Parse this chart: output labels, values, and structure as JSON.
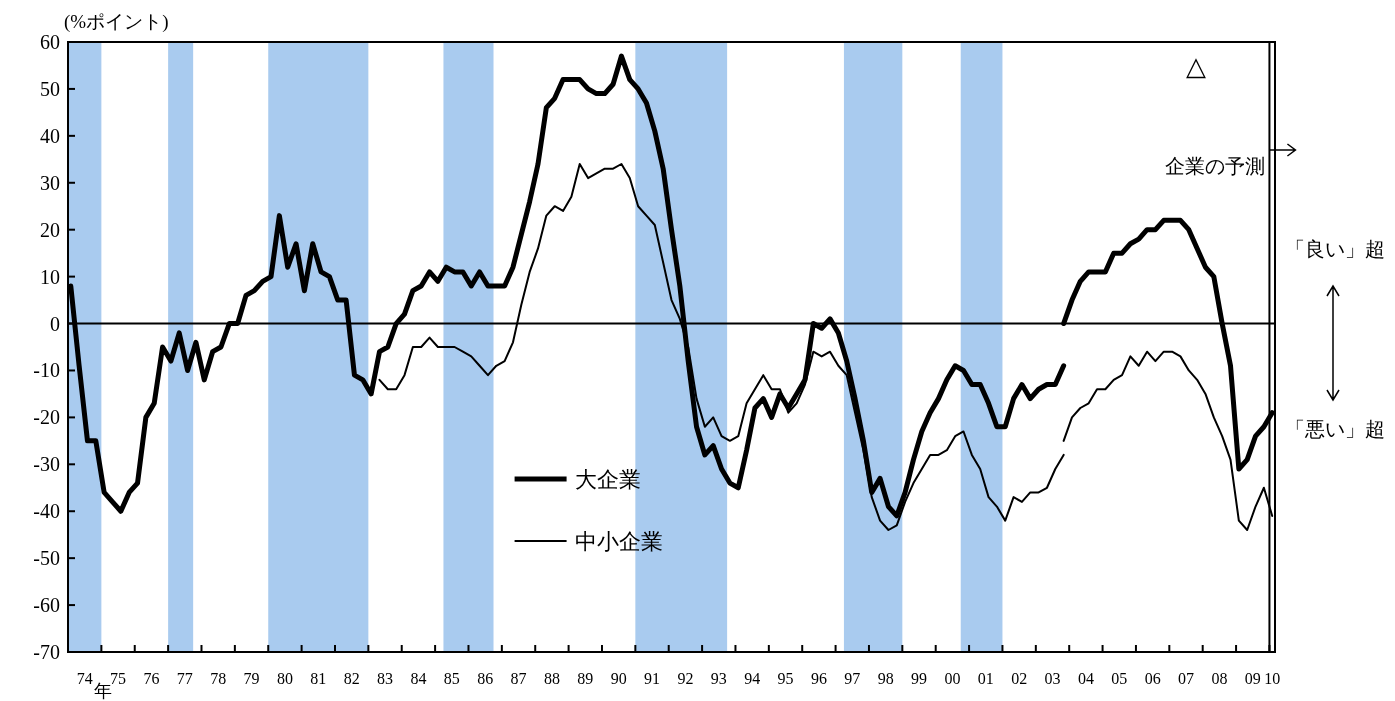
{
  "chart_data": {
    "type": "line",
    "ylabel": "(%ポイント)",
    "xlabel": "年",
    "xlim": [
      "1974-01",
      "2010-03"
    ],
    "ylim": [
      -70,
      60
    ],
    "yticks": [
      -70,
      -60,
      -50,
      -40,
      -30,
      -20,
      -10,
      0,
      10,
      20,
      30,
      40,
      50,
      60
    ],
    "xticks": [
      {
        "value": "1974-07",
        "label": "74"
      },
      {
        "value": "1975-01",
        "label": null
      },
      {
        "value": "1975-07",
        "label": "75"
      },
      {
        "value": "1976-01",
        "label": null
      },
      {
        "value": "1976-07",
        "label": "76"
      },
      {
        "value": "1977-01",
        "label": null
      },
      {
        "value": "1977-07",
        "label": "77"
      },
      {
        "value": "1978-01",
        "label": null
      },
      {
        "value": "1978-07",
        "label": "78"
      },
      {
        "value": "1979-01",
        "label": null
      },
      {
        "value": "1979-07",
        "label": "79"
      },
      {
        "value": "1980-01",
        "label": null
      },
      {
        "value": "1980-07",
        "label": "80"
      },
      {
        "value": "1981-01",
        "label": null
      },
      {
        "value": "1981-07",
        "label": "81"
      },
      {
        "value": "1982-01",
        "label": null
      },
      {
        "value": "1982-07",
        "label": "82"
      },
      {
        "value": "1983-01",
        "label": null
      },
      {
        "value": "1983-07",
        "label": "83"
      },
      {
        "value": "1984-01",
        "label": null
      },
      {
        "value": "1984-07",
        "label": "84"
      },
      {
        "value": "1985-01",
        "label": null
      },
      {
        "value": "1985-07",
        "label": "85"
      },
      {
        "value": "1986-01",
        "label": null
      },
      {
        "value": "1986-07",
        "label": "86"
      },
      {
        "value": "1987-01",
        "label": null
      },
      {
        "value": "1987-07",
        "label": "87"
      },
      {
        "value": "1988-01",
        "label": null
      },
      {
        "value": "1988-07",
        "label": "88"
      },
      {
        "value": "1989-01",
        "label": null
      },
      {
        "value": "1989-07",
        "label": "89"
      },
      {
        "value": "1990-01",
        "label": null
      },
      {
        "value": "1990-07",
        "label": "90"
      },
      {
        "value": "1991-01",
        "label": null
      },
      {
        "value": "1991-07",
        "label": "91"
      },
      {
        "value": "1992-01",
        "label": null
      },
      {
        "value": "1992-07",
        "label": "92"
      },
      {
        "value": "1993-01",
        "label": null
      },
      {
        "value": "1993-07",
        "label": "93"
      },
      {
        "value": "1994-01",
        "label": null
      },
      {
        "value": "1994-07",
        "label": "94"
      },
      {
        "value": "1995-01",
        "label": null
      },
      {
        "value": "1995-07",
        "label": "95"
      },
      {
        "value": "1996-01",
        "label": null
      },
      {
        "value": "1996-07",
        "label": "96"
      },
      {
        "value": "1997-01",
        "label": null
      },
      {
        "value": "1997-07",
        "label": "97"
      },
      {
        "value": "1998-01",
        "label": null
      },
      {
        "value": "1998-07",
        "label": "98"
      },
      {
        "value": "1999-01",
        "label": null
      },
      {
        "value": "1999-07",
        "label": "99"
      },
      {
        "value": "2000-01",
        "label": null
      },
      {
        "value": "2000-07",
        "label": "00"
      },
      {
        "value": "2001-01",
        "label": null
      },
      {
        "value": "2001-07",
        "label": "01"
      },
      {
        "value": "2002-01",
        "label": null
      },
      {
        "value": "2002-07",
        "label": "02"
      },
      {
        "value": "2003-01",
        "label": null
      },
      {
        "value": "2003-07",
        "label": "03"
      },
      {
        "value": "2004-01",
        "label": null
      },
      {
        "value": "2004-07",
        "label": "04"
      },
      {
        "value": "2005-01",
        "label": null
      },
      {
        "value": "2005-07",
        "label": "05"
      },
      {
        "value": "2006-01",
        "label": null
      },
      {
        "value": "2006-07",
        "label": "06"
      },
      {
        "value": "2007-01",
        "label": null
      },
      {
        "value": "2007-07",
        "label": "07"
      },
      {
        "value": "2008-01",
        "label": null
      },
      {
        "value": "2008-07",
        "label": "08"
      },
      {
        "value": "2009-01",
        "label": null
      },
      {
        "value": "2009-07",
        "label": "09"
      },
      {
        "value": "2010-01",
        "label": null
      },
      {
        "value": "2010-02",
        "label": "10"
      }
    ],
    "bands": [
      {
        "axis": "x",
        "from": "1974-01",
        "to": "1975-01",
        "color": "#a9cbef"
      },
      {
        "axis": "x",
        "from": "1977-01",
        "to": "1977-10",
        "color": "#a9cbef"
      },
      {
        "axis": "x",
        "from": "1980-01",
        "to": "1983-01",
        "color": "#a9cbef"
      },
      {
        "axis": "x",
        "from": "1985-04",
        "to": "1986-10",
        "color": "#a9cbef"
      },
      {
        "axis": "x",
        "from": "1991-01",
        "to": "1993-10",
        "color": "#a9cbef"
      },
      {
        "axis": "x",
        "from": "1997-04",
        "to": "1999-01",
        "color": "#a9cbef"
      },
      {
        "axis": "x",
        "from": "2000-10",
        "to": "2002-01",
        "color": "#a9cbef"
      }
    ],
    "ref_lines": [
      {
        "axis": "y",
        "value": 0,
        "color": "#000000"
      },
      {
        "axis": "x",
        "value": "2010-01",
        "label": "企業の予測",
        "color": "#000000"
      }
    ],
    "legend": "bottom left",
    "series": [
      {
        "name": "大企業",
        "color": "#000000",
        "x": [
          "1974-02",
          "1974-05",
          "1974-08",
          "1974-11",
          "1975-02",
          "1975-05",
          "1975-08",
          "1975-11",
          "1976-02",
          "1976-05",
          "1976-08",
          "1976-11",
          "1977-02",
          "1977-05",
          "1977-08",
          "1977-11",
          "1978-02",
          "1978-05",
          "1978-08",
          "1978-11",
          "1979-02",
          "1979-05",
          "1979-08",
          "1979-11",
          "1980-02",
          "1980-05",
          "1980-08",
          "1980-11",
          "1981-02",
          "1981-05",
          "1981-08",
          "1981-11",
          "1982-02",
          "1982-05",
          "1982-08",
          "1982-11",
          "1983-02",
          "1983-05",
          "1983-08",
          "1983-11",
          "1984-02",
          "1984-05",
          "1984-08",
          "1984-11",
          "1985-02",
          "1985-05",
          "1985-08",
          "1985-11",
          "1986-02",
          "1986-05",
          "1986-08",
          "1986-11",
          "1987-02",
          "1987-05",
          "1987-08",
          "1987-11",
          "1988-02",
          "1988-05",
          "1988-08",
          "1988-11",
          "1989-02",
          "1989-05",
          "1989-08",
          "1989-11",
          "1990-02",
          "1990-05",
          "1990-08",
          "1990-11",
          "1991-02",
          "1991-05",
          "1991-08",
          "1991-11",
          "1992-02",
          "1992-05",
          "1992-08",
          "1992-11",
          "1993-02",
          "1993-05",
          "1993-08",
          "1993-11",
          "1994-02",
          "1994-05",
          "1994-08",
          "1994-11",
          "1995-02",
          "1995-05",
          "1995-08",
          "1995-11",
          "1996-02",
          "1996-05",
          "1996-08",
          "1996-11",
          "1997-02",
          "1997-05",
          "1997-08",
          "1997-11",
          "1998-02",
          "1998-05",
          "1998-08",
          "1998-11",
          "1999-02",
          "1999-05",
          "1999-08",
          "1999-11",
          "2000-02",
          "2000-05",
          "2000-08",
          "2000-11",
          "2001-02",
          "2001-05",
          "2001-08",
          "2001-11",
          "2002-02",
          "2002-05",
          "2002-08",
          "2002-11",
          "2003-02",
          "2003-05",
          "2003-08",
          "2003-11"
        ],
        "values": [
          8,
          -9,
          -25,
          -25,
          -36,
          -38,
          -40,
          -36,
          -34,
          -20,
          -17,
          -5,
          -8,
          -2,
          -10,
          -4,
          -12,
          -6,
          -5,
          0,
          0,
          6,
          7,
          9,
          10,
          23,
          12,
          17,
          7,
          17,
          11,
          10,
          5,
          5,
          -11,
          -12,
          -15,
          -6,
          -5,
          0,
          2,
          7,
          8,
          11,
          9,
          12,
          11,
          11,
          8,
          11,
          8,
          8,
          8,
          12,
          19,
          26,
          34,
          46,
          48,
          52,
          52,
          52,
          50,
          49,
          49,
          51,
          57,
          52,
          50,
          47,
          41,
          33,
          20,
          8,
          -8,
          -22,
          -28,
          -26,
          -31,
          -34,
          -35,
          -27,
          -18,
          -16,
          -20,
          -15,
          -18,
          -15,
          -12,
          0,
          -1,
          1,
          -2,
          -8,
          -16,
          -25,
          -36,
          -33,
          -39,
          -41,
          -36,
          -29,
          -23,
          -19,
          -16,
          -12,
          -9,
          -10,
          -13,
          -13,
          -17,
          -22,
          -22,
          -16,
          -13,
          -16,
          -14,
          -13,
          -13,
          -9
        ]
      },
      {
        "name": "中小企業",
        "color": "#000000",
        "x": [
          "1983-05",
          "1983-08",
          "1983-11",
          "1984-02",
          "1984-05",
          "1984-08",
          "1984-11",
          "1985-02",
          "1985-05",
          "1985-08",
          "1985-11",
          "1986-02",
          "1986-05",
          "1986-08",
          "1986-11",
          "1987-02",
          "1987-05",
          "1987-08",
          "1987-11",
          "1988-02",
          "1988-05",
          "1988-08",
          "1988-11",
          "1989-02",
          "1989-05",
          "1989-08",
          "1989-11",
          "1990-02",
          "1990-05",
          "1990-08",
          "1990-11",
          "1991-02",
          "1991-05",
          "1991-08",
          "1991-11",
          "1992-02",
          "1992-05",
          "1992-08",
          "1992-11",
          "1993-02",
          "1993-05",
          "1993-08",
          "1993-11",
          "1994-02",
          "1994-05",
          "1994-08",
          "1994-11",
          "1995-02",
          "1995-05",
          "1995-08",
          "1995-11",
          "1996-02",
          "1996-05",
          "1996-08",
          "1996-11",
          "1997-02",
          "1997-05",
          "1997-08",
          "1997-11",
          "1998-02",
          "1998-05",
          "1998-08",
          "1998-11",
          "1999-02",
          "1999-05",
          "1999-08",
          "1999-11",
          "2000-02",
          "2000-05",
          "2000-08",
          "2000-11",
          "2001-02",
          "2001-05",
          "2001-08",
          "2001-11",
          "2002-02",
          "2002-05",
          "2002-08",
          "2002-11",
          "2003-02",
          "2003-05",
          "2003-08",
          "2003-11"
        ],
        "values": [
          -12,
          -14,
          -14,
          -11,
          -5,
          -5,
          -3,
          -5,
          -5,
          -5,
          -6,
          -7,
          -9,
          -11,
          -9,
          -8,
          -4,
          4,
          11,
          16,
          23,
          25,
          24,
          27,
          34,
          31,
          32,
          33,
          33,
          34,
          31,
          25,
          23,
          21,
          13,
          5,
          1,
          -5,
          -16,
          -22,
          -20,
          -24,
          -25,
          -24,
          -17,
          -14,
          -11,
          -14,
          -14,
          -19,
          -17,
          -13,
          -6,
          -7,
          -6,
          -9,
          -11,
          -19,
          -27,
          -37,
          -42,
          -44,
          -43,
          -38,
          -34,
          -31,
          -28,
          -28,
          -27,
          -24,
          -23,
          -28,
          -31,
          -37,
          -39,
          -42,
          -37,
          -38,
          -36,
          -36,
          -35,
          -31,
          -28
        ]
      },
      {
        "color": "#000000",
        "x": [
          "2003-11",
          "2004-02",
          "2004-05",
          "2004-08",
          "2004-11",
          "2005-02",
          "2005-05",
          "2005-08",
          "2005-11",
          "2006-02",
          "2006-05",
          "2006-08",
          "2006-11",
          "2007-02",
          "2007-05",
          "2007-08",
          "2007-11",
          "2008-02",
          "2008-05",
          "2008-08",
          "2008-11",
          "2009-02",
          "2009-05",
          "2009-08",
          "2009-11",
          "2010-02"
        ],
        "values": [
          0,
          5,
          9,
          11,
          11,
          11,
          15,
          15,
          17,
          18,
          20,
          20,
          22,
          22,
          22,
          20,
          16,
          12,
          10,
          0,
          -9,
          -31,
          -29,
          -24,
          -22,
          -19
        ]
      },
      {
        "color": "#000000",
        "x": [
          "2003-11",
          "2004-02",
          "2004-05",
          "2004-08",
          "2004-11",
          "2005-02",
          "2005-05",
          "2005-08",
          "2005-11",
          "2006-02",
          "2006-05",
          "2006-08",
          "2006-11",
          "2007-02",
          "2007-05",
          "2007-08",
          "2007-11",
          "2008-02",
          "2008-05",
          "2008-08",
          "2008-11",
          "2009-02",
          "2009-05",
          "2009-08",
          "2009-11",
          "2010-02"
        ],
        "values": [
          -25,
          -20,
          -18,
          -17,
          -14,
          -14,
          -12,
          -11,
          -7,
          -9,
          -6,
          -8,
          -6,
          -6,
          -7,
          -10,
          -12,
          -15,
          -20,
          -24,
          -29,
          -42,
          -44,
          -39,
          -35,
          -41
        ]
      }
    ],
    "annotations": [
      "△",
      "「良い」超",
      "「悪い」超"
    ]
  }
}
